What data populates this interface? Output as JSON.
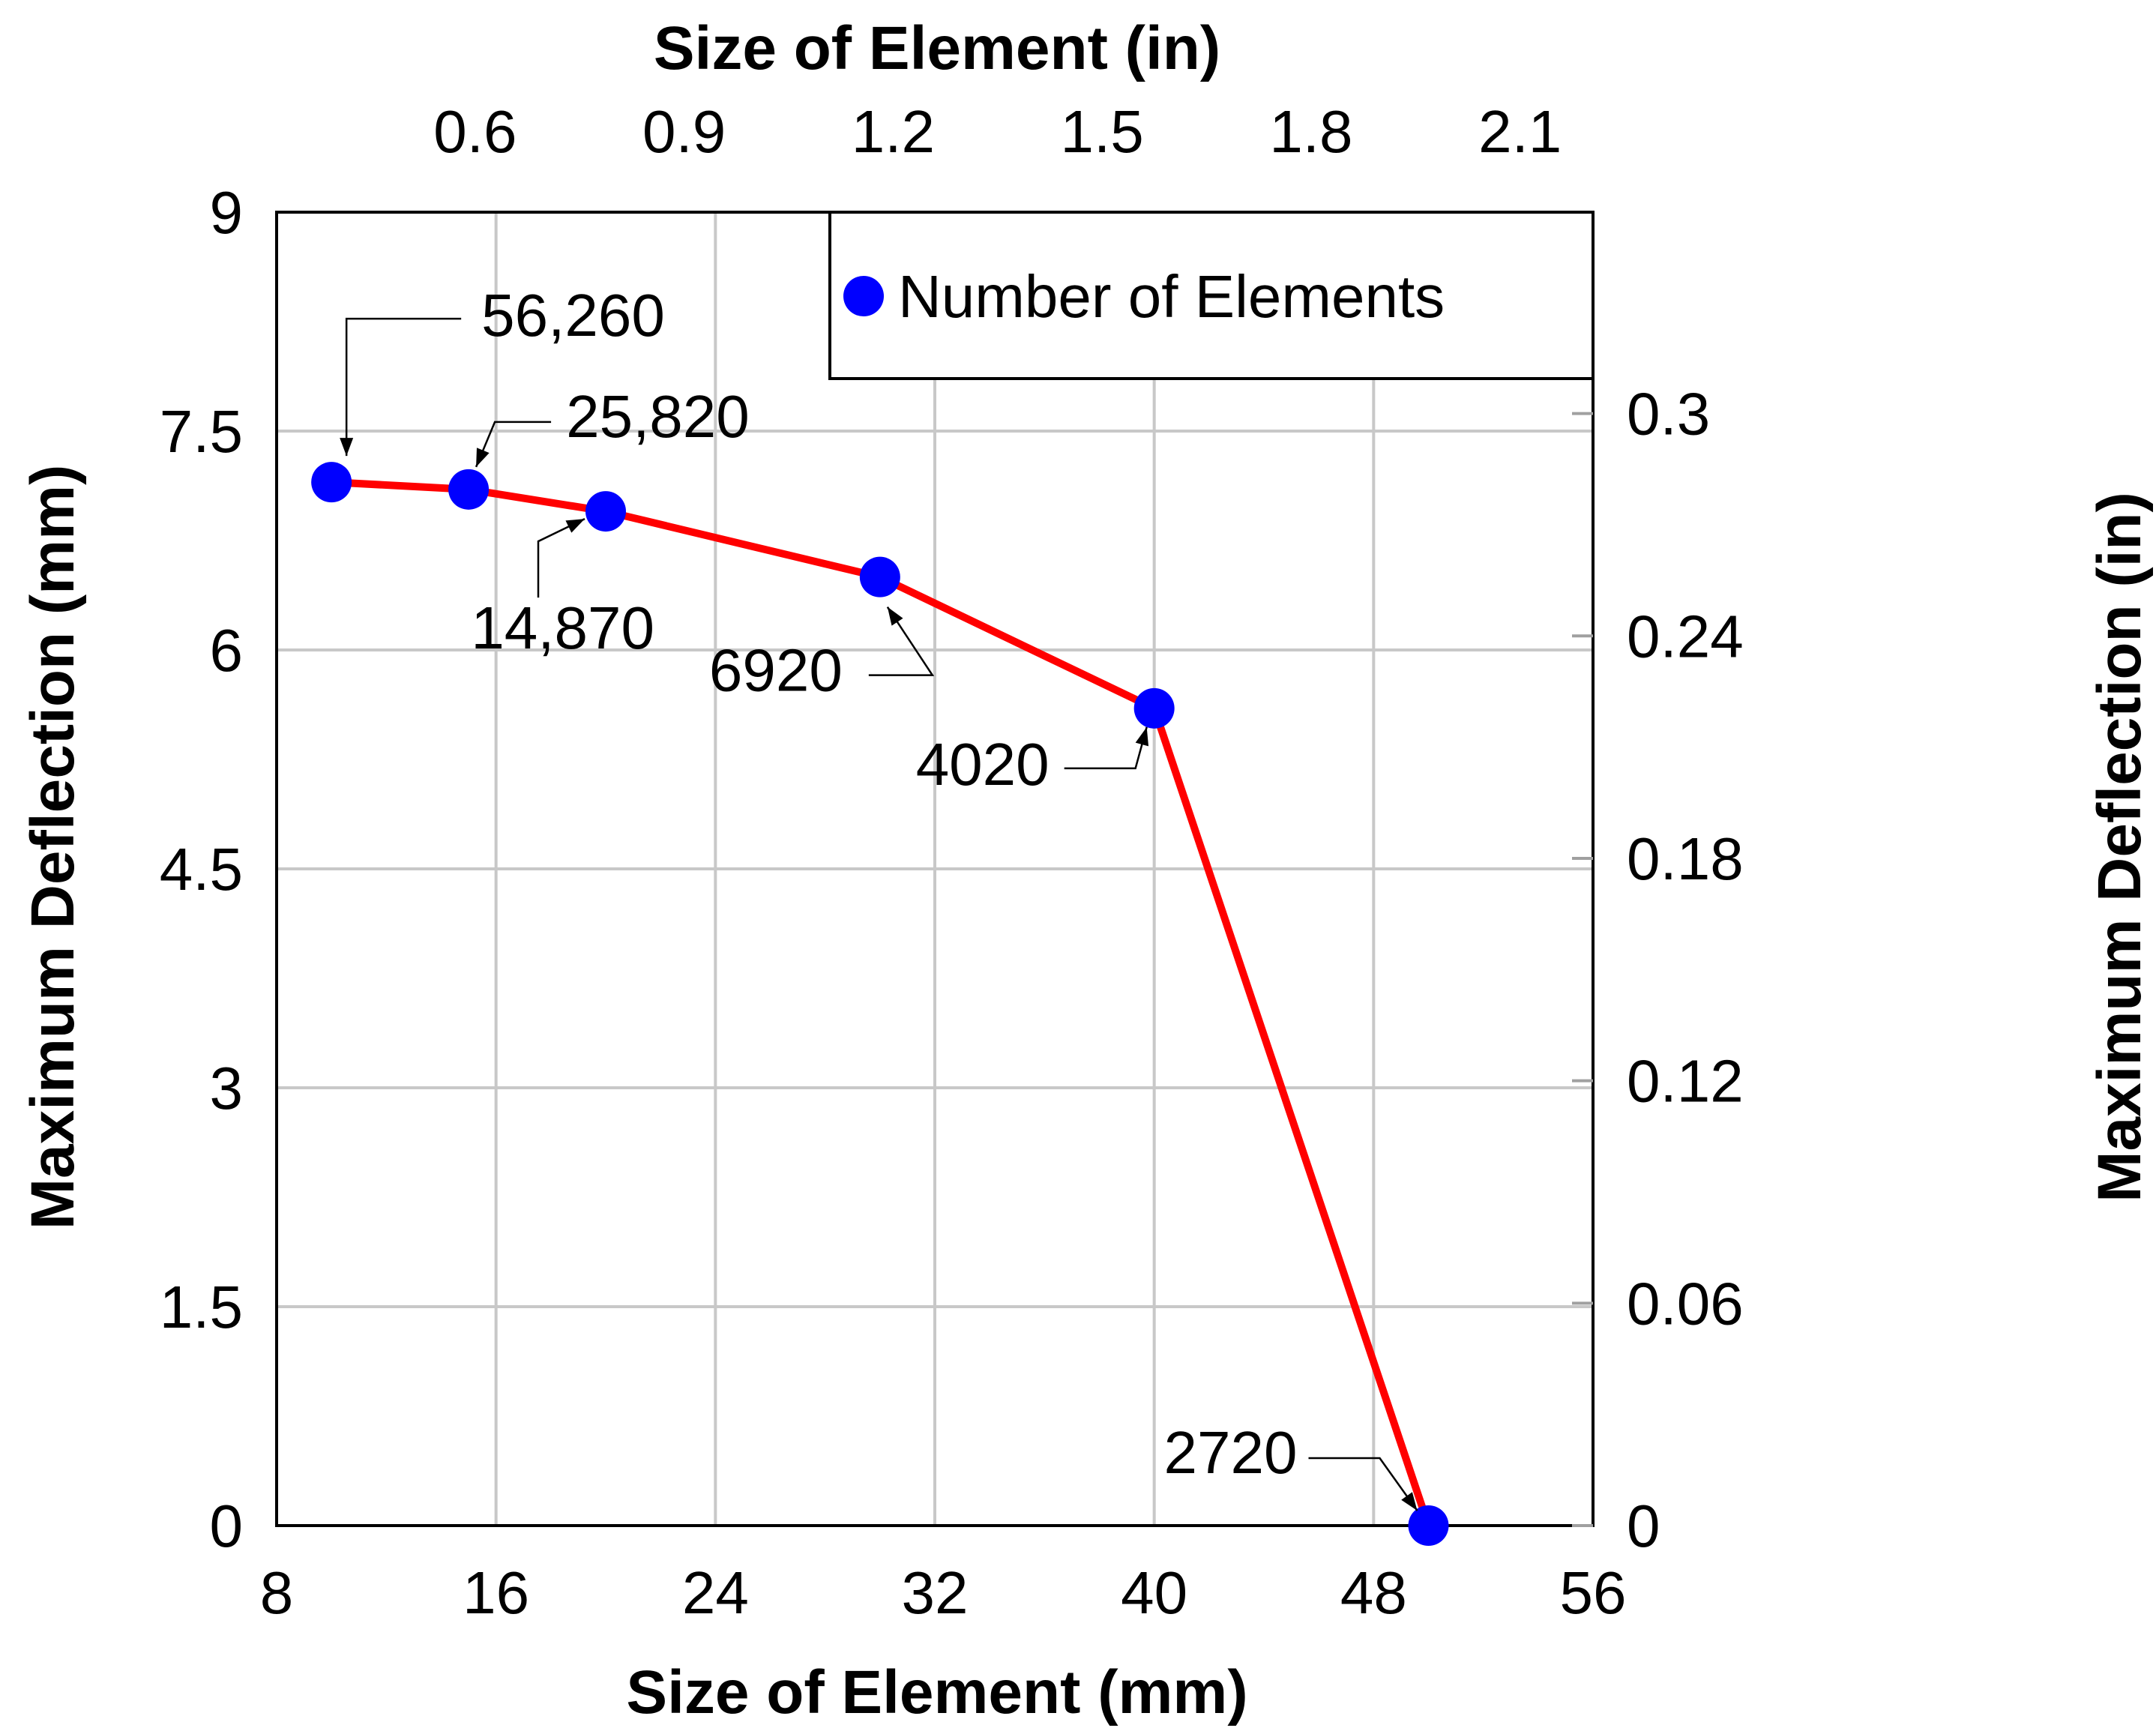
{
  "chart_data": {
    "type": "line",
    "xlabel": "Size of Element (mm)",
    "x2label": "Size of Element (in)",
    "ylabel": "Maximum Deflection (mm)",
    "y2label": "Maximum Deflection (in)",
    "xlim": [
      8,
      56
    ],
    "ylim": [
      0,
      9
    ],
    "xticks": [
      "8",
      "16",
      "24",
      "32",
      "40",
      "48",
      "56"
    ],
    "yticks": [
      "0",
      "1.5",
      "3",
      "4.5",
      "6",
      "7.5",
      "9"
    ],
    "x2ticks": [
      "0.6",
      "0.9",
      "1.2",
      "1.5",
      "1.8",
      "2.1"
    ],
    "x2tick_values": [
      0.6,
      0.9,
      1.2,
      1.5,
      1.8,
      2.1
    ],
    "y2ticks": [
      "0",
      "0.06",
      "0.12",
      "0.18",
      "0.24",
      "0.3"
    ],
    "y2tick_values": [
      0,
      0.06,
      0.12,
      0.18,
      0.24,
      0.3
    ],
    "grid": true,
    "legend": {
      "position": "top-right",
      "label": "Number of Elements"
    },
    "series": [
      {
        "name": "Number of Elements",
        "line_color": "#ff0000",
        "marker_color": "#0000ff",
        "x": [
          10,
          15,
          20,
          30,
          40,
          50
        ],
        "y": [
          7.15,
          7.1,
          6.95,
          6.5,
          5.6,
          0
        ],
        "labels": [
          "56,260",
          "25,820",
          "14,870",
          "6920",
          "4020",
          "2720"
        ]
      }
    ]
  }
}
